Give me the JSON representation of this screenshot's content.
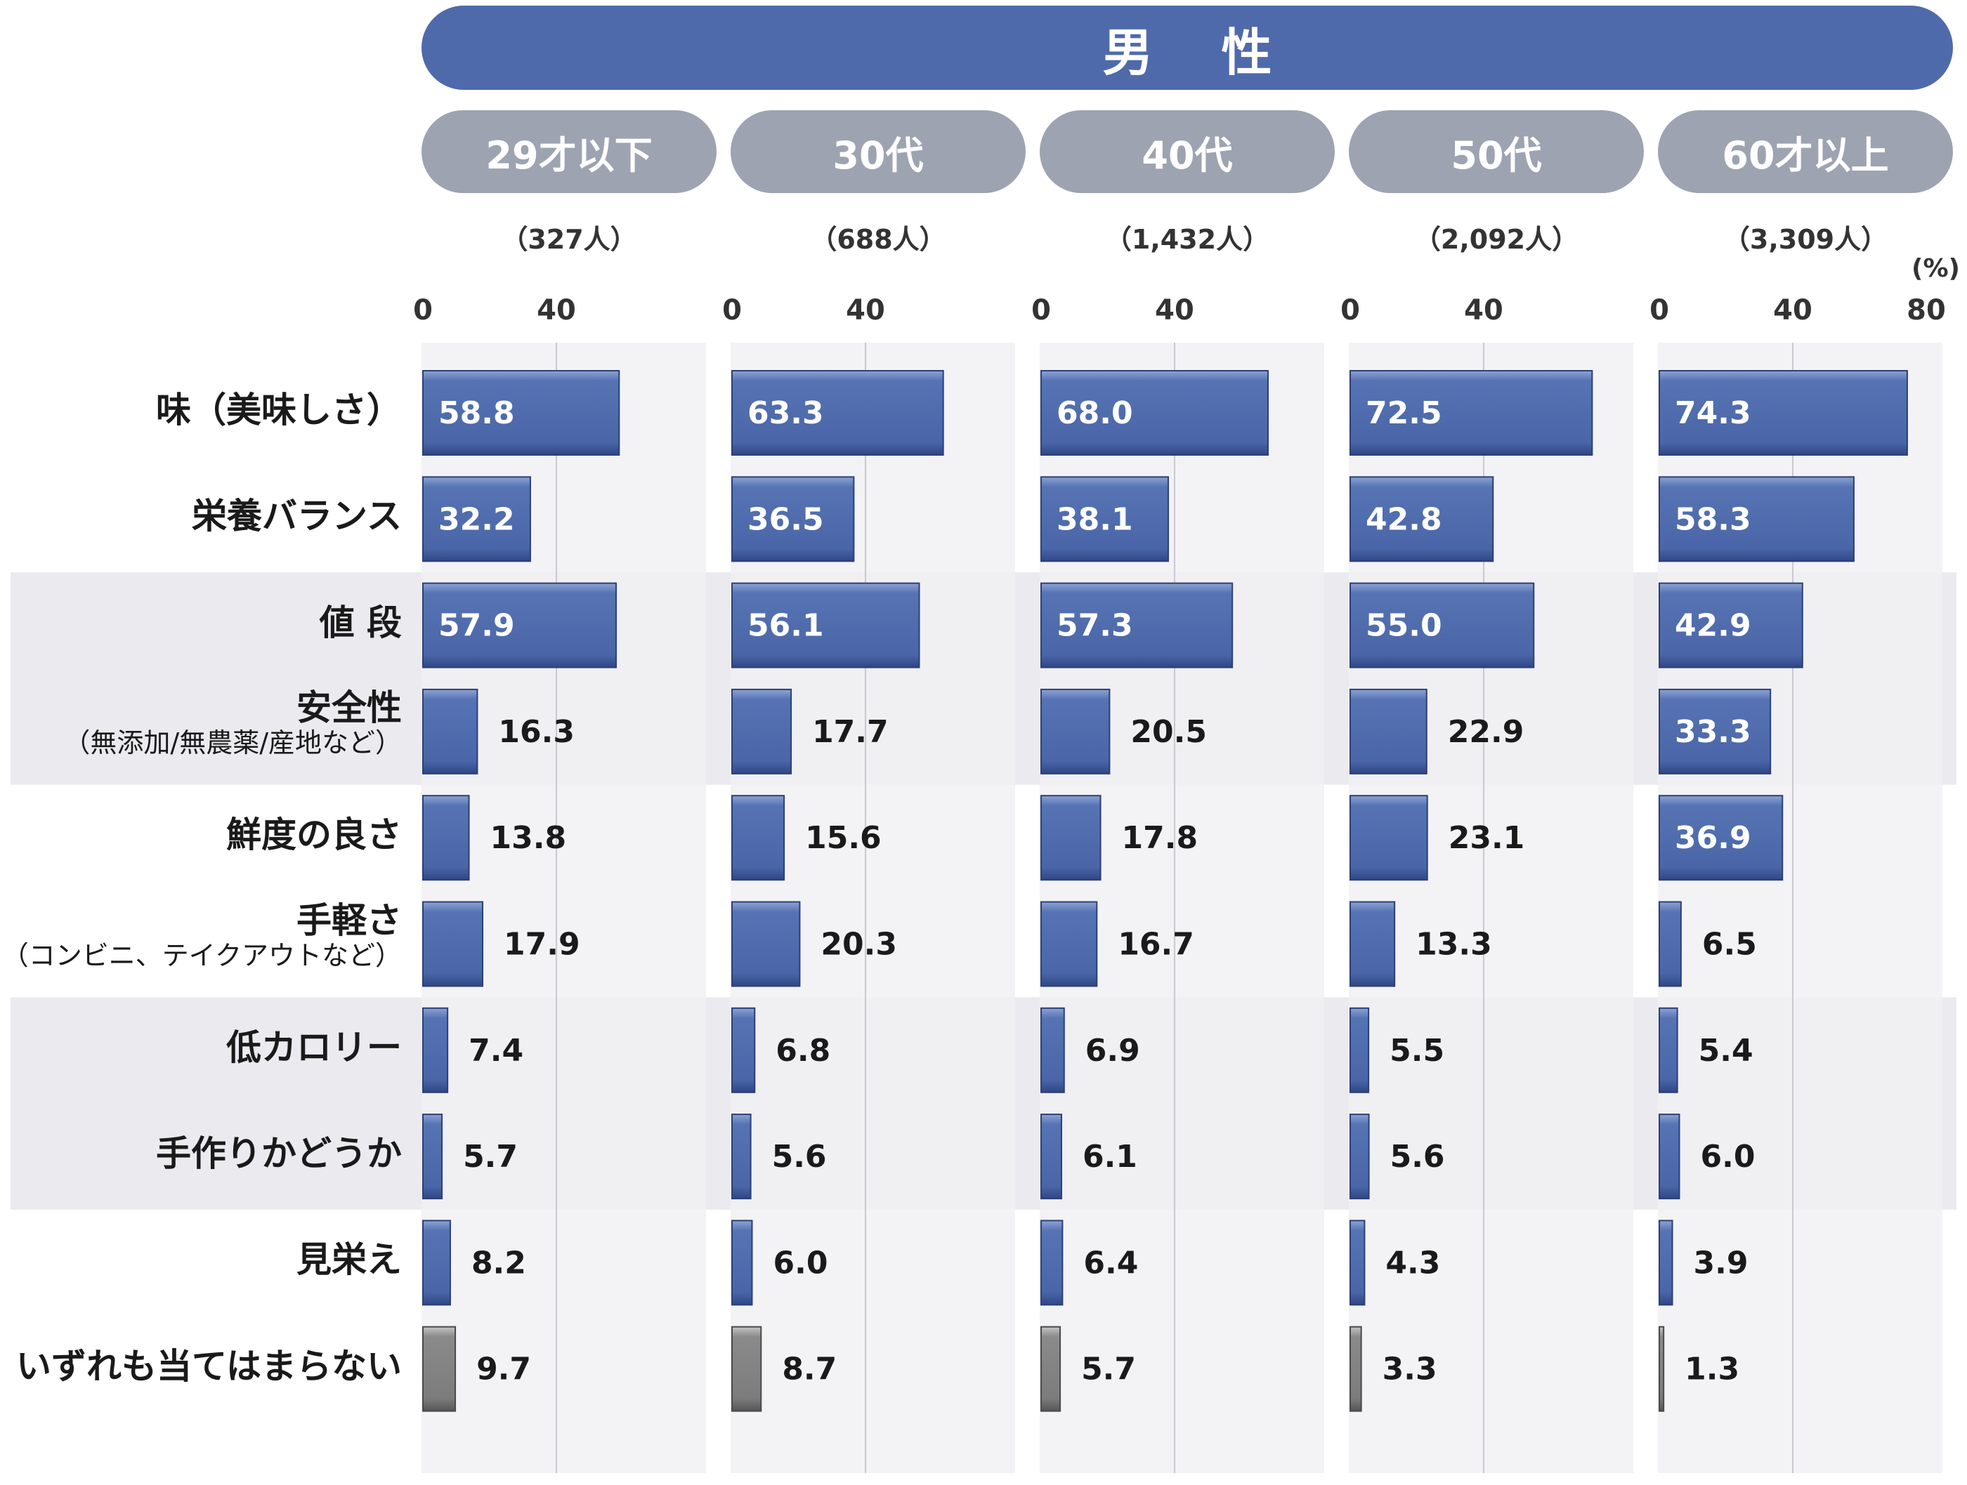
{
  "chart_data": {
    "type": "bar",
    "orientation": "horizontal",
    "title": "男 性",
    "unit": "(%)",
    "xlim": [
      0,
      80
    ],
    "ticks": [
      0,
      40,
      80
    ],
    "categories": [
      {
        "label": "味（美味しさ）",
        "sub": ""
      },
      {
        "label": "栄養バランス",
        "sub": ""
      },
      {
        "label": "値 段",
        "sub": ""
      },
      {
        "label": "安全性",
        "sub": "（無添加/無農薬/産地など）"
      },
      {
        "label": "鮮度の良さ",
        "sub": ""
      },
      {
        "label": "手軽さ",
        "sub": "（コンビニ、テイクアウトなど）"
      },
      {
        "label": "低カロリー",
        "sub": ""
      },
      {
        "label": "手作りかどうか",
        "sub": ""
      },
      {
        "label": "見栄え",
        "sub": ""
      },
      {
        "label": "いずれも当てはまらない",
        "sub": ""
      }
    ],
    "series": [
      {
        "name": "29才以下",
        "count": "（327人）",
        "values": [
          58.8,
          32.2,
          57.9,
          16.3,
          13.8,
          17.9,
          7.4,
          5.7,
          8.2,
          9.7
        ]
      },
      {
        "name": "30代",
        "count": "（688人）",
        "values": [
          63.3,
          36.5,
          56.1,
          17.7,
          15.6,
          20.3,
          6.8,
          5.6,
          6.0,
          8.7
        ]
      },
      {
        "name": "40代",
        "count": "（1,432人）",
        "values": [
          68.0,
          38.1,
          57.3,
          20.5,
          17.8,
          16.7,
          6.9,
          6.1,
          6.4,
          5.7
        ]
      },
      {
        "name": "50代",
        "count": "（2,092人）",
        "values": [
          72.5,
          42.8,
          55.0,
          22.9,
          23.1,
          13.3,
          5.5,
          5.6,
          4.3,
          3.3
        ]
      },
      {
        "name": "60才以上",
        "count": "（3,309人）",
        "values": [
          74.3,
          58.3,
          42.9,
          33.3,
          36.9,
          6.5,
          5.4,
          6.0,
          3.9,
          1.3
        ]
      }
    ],
    "bar_color": "#4f6aab",
    "none_bar_color": "#808080",
    "label_inside_color": "#ffffff",
    "label_outside_color": "#1a1a1a"
  }
}
